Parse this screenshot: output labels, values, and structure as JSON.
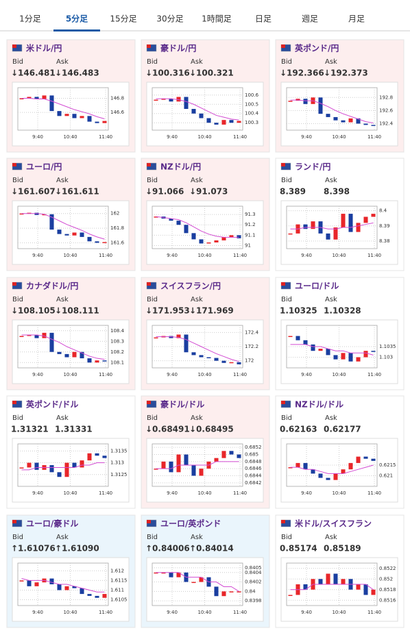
{
  "tabs": [
    "1分足",
    "5分足",
    "15分足",
    "30分足",
    "1時間足",
    "日足",
    "週足",
    "月足"
  ],
  "active_tab": 1,
  "bid_label": "Bid",
  "ask_label": "Ask",
  "chart_xticks": [
    "9:40",
    "10:40",
    "11:40"
  ],
  "cards": [
    {
      "pair": "米ドル/円",
      "trend": "down",
      "bid": "↓146.481",
      "ask": "↓146.483",
      "chart": {
        "type": "candlestick",
        "ylim": [
          146.35,
          146.95
        ],
        "yticks": [
          146.6,
          146.8
        ],
        "values": [
          146.8,
          146.82,
          146.79,
          146.84,
          146.62,
          146.55,
          146.58,
          146.52,
          146.55,
          146.47,
          146.45,
          146.48
        ],
        "ma": [
          146.8,
          146.8,
          146.79,
          146.79,
          146.76,
          146.72,
          146.68,
          146.64,
          146.61,
          146.58,
          146.54,
          146.51
        ]
      }
    },
    {
      "pair": "豪ドル/円",
      "trend": "down",
      "bid": "↓100.316",
      "ask": "↓100.321",
      "chart": {
        "type": "candlestick",
        "ylim": [
          100.22,
          100.68
        ],
        "yticks": [
          100.3,
          100.4,
          100.5,
          100.6
        ],
        "values": [
          100.55,
          100.56,
          100.53,
          100.58,
          100.45,
          100.4,
          100.35,
          100.3,
          100.28,
          100.33,
          100.3,
          100.32
        ],
        "ma": [
          100.56,
          100.56,
          100.56,
          100.55,
          100.53,
          100.5,
          100.46,
          100.42,
          100.38,
          100.36,
          100.34,
          100.33
        ]
      }
    },
    {
      "pair": "英ポンド/円",
      "trend": "down",
      "bid": "↓192.366",
      "ask": "↓192.373",
      "chart": {
        "type": "candlestick",
        "ylim": [
          192.3,
          192.95
        ],
        "yticks": [
          192.4,
          192.6,
          192.8
        ],
        "values": [
          192.75,
          192.78,
          192.7,
          192.8,
          192.55,
          192.5,
          192.45,
          192.42,
          192.48,
          192.4,
          192.38,
          192.37
        ],
        "ma": [
          192.76,
          192.76,
          192.75,
          192.75,
          192.71,
          192.66,
          192.6,
          192.55,
          192.51,
          192.47,
          192.43,
          192.41
        ]
      }
    },
    {
      "pair": "ユーロ/円",
      "trend": "down",
      "bid": "↓161.607",
      "ask": "↓161.611",
      "chart": {
        "type": "candlestick",
        "ylim": [
          161.52,
          162.1
        ],
        "yticks": [
          161.6,
          161.8,
          162
        ],
        "values": [
          162,
          162.01,
          161.98,
          161.99,
          161.78,
          161.72,
          161.7,
          161.74,
          161.68,
          161.62,
          161.6,
          161.61
        ],
        "ma": [
          162,
          162,
          162,
          161.99,
          161.95,
          161.9,
          161.85,
          161.81,
          161.77,
          161.72,
          161.68,
          161.65
        ]
      }
    },
    {
      "pair": "NZドル/円",
      "trend": "down",
      "bid": "↓91.066",
      "ask": "↓91.073",
      "chart": {
        "type": "candlestick",
        "ylim": [
          90.97,
          91.38
        ],
        "yticks": [
          91,
          91.1,
          91.2,
          91.3
        ],
        "values": [
          91.28,
          91.26,
          91.24,
          91.2,
          91.12,
          91.06,
          91.02,
          91.03,
          91.05,
          91.08,
          91.1,
          91.07
        ],
        "ma": [
          91.28,
          91.27,
          91.26,
          91.25,
          91.22,
          91.18,
          91.14,
          91.11,
          91.09,
          91.08,
          91.08,
          91.08
        ]
      }
    },
    {
      "pair": "ランド/円",
      "trend": "flat",
      "bid": "8.389",
      "ask": "8.398",
      "chart": {
        "type": "candlestick",
        "ylim": [
          8.375,
          8.403
        ],
        "yticks": [
          8.38,
          8.39,
          8.4
        ],
        "values": [
          8.385,
          8.391,
          8.388,
          8.393,
          8.385,
          8.381,
          8.389,
          8.398,
          8.386,
          8.392,
          8.396,
          8.398
        ],
        "ma": [
          8.388,
          8.388,
          8.389,
          8.389,
          8.389,
          8.388,
          8.388,
          8.389,
          8.389,
          8.39,
          8.391,
          8.392
        ]
      }
    },
    {
      "pair": "カナダドル/円",
      "trend": "down",
      "bid": "↓108.105",
      "ask": "↓108.111",
      "chart": {
        "type": "candlestick",
        "ylim": [
          108.05,
          108.45
        ],
        "yticks": [
          108.1,
          108.2,
          108.3,
          108.4
        ],
        "values": [
          108.35,
          108.36,
          108.33,
          108.38,
          108.2,
          108.18,
          108.15,
          108.2,
          108.14,
          108.1,
          108.12,
          108.11
        ],
        "ma": [
          108.36,
          108.36,
          108.36,
          108.35,
          108.32,
          108.29,
          108.25,
          108.22,
          108.19,
          108.16,
          108.14,
          108.13
        ]
      }
    },
    {
      "pair": "スイスフラン/円",
      "trend": "down",
      "bid": "↓171.953",
      "ask": "↓171.969",
      "chart": {
        "type": "candlestick",
        "ylim": [
          171.9,
          172.5
        ],
        "yticks": [
          172,
          172.2,
          172.4
        ],
        "values": [
          172.33,
          172.35,
          172.32,
          172.37,
          172.12,
          172.08,
          172.05,
          172.04,
          172,
          171.97,
          171.98,
          171.95
        ],
        "ma": [
          172.34,
          172.34,
          172.34,
          172.33,
          172.3,
          172.25,
          172.2,
          172.15,
          172.1,
          172.06,
          172.02,
          171.99
        ]
      }
    },
    {
      "pair": "ユーロ/ドル",
      "trend": "flat",
      "bid": "1.10325",
      "ask": "1.10328",
      "chart": {
        "type": "candlestick",
        "ylim": [
          1.1025,
          1.1045
        ],
        "yticks": [
          1.103,
          1.1035
        ],
        "values": [
          1.104,
          1.1038,
          1.1036,
          1.1033,
          1.1034,
          1.1031,
          1.1029,
          1.1032,
          1.1028,
          1.103,
          1.1033,
          1.10325
        ],
        "ma": [
          1.1036,
          1.1036,
          1.1036,
          1.1035,
          1.1035,
          1.1034,
          1.1033,
          1.1033,
          1.1032,
          1.1032,
          1.1032,
          1.1031
        ]
      }
    },
    {
      "pair": "英ポンド/ドル",
      "trend": "flat",
      "bid": "1.31321",
      "ask": "1.31331",
      "chart": {
        "type": "candlestick",
        "ylim": [
          1.312,
          1.3138
        ],
        "yticks": [
          1.3125,
          1.313,
          1.3135
        ],
        "values": [
          1.3128,
          1.313,
          1.3127,
          1.3129,
          1.3126,
          1.3124,
          1.313,
          1.3128,
          1.3131,
          1.3134,
          1.3133,
          1.3132
        ],
        "ma": [
          1.3127,
          1.3127,
          1.3128,
          1.3128,
          1.3128,
          1.3128,
          1.3128,
          1.3128,
          1.3129,
          1.3129,
          1.313,
          1.313
        ]
      }
    },
    {
      "pair": "豪ドル/ドル",
      "trend": "down",
      "bid": "↓0.68491",
      "ask": "↓0.68495",
      "chart": {
        "type": "candlestick",
        "ylim": [
          0.6841,
          0.6853
        ],
        "yticks": [
          0.6842,
          0.6844,
          0.6846,
          0.6848,
          0.685,
          0.6852
        ],
        "values": [
          0.6846,
          0.6848,
          0.6845,
          0.685,
          0.6847,
          0.6844,
          0.6846,
          0.6848,
          0.6849,
          0.6851,
          0.685,
          0.6849
        ],
        "ma": [
          0.6846,
          0.6846,
          0.6846,
          0.6847,
          0.6847,
          0.6847,
          0.6847,
          0.6847,
          0.6848,
          0.6848,
          0.6848,
          0.6848
        ]
      }
    },
    {
      "pair": "NZドル/ドル",
      "trend": "flat",
      "bid": "0.62163",
      "ask": "0.62177",
      "chart": {
        "type": "candlestick",
        "ylim": [
          0.6205,
          0.6225
        ],
        "yticks": [
          0.621,
          0.6215
        ],
        "values": [
          0.6214,
          0.6216,
          0.6213,
          0.6211,
          0.6209,
          0.6208,
          0.6211,
          0.6213,
          0.6216,
          0.6219,
          0.6218,
          0.6217
        ],
        "ma": [
          0.6214,
          0.6214,
          0.6213,
          0.6213,
          0.6212,
          0.6211,
          0.6211,
          0.6211,
          0.6212,
          0.6213,
          0.6214,
          0.6215
        ]
      }
    },
    {
      "pair": "ユーロ/豪ドル",
      "trend": "up",
      "bid": "↑1.61076",
      "ask": "↑1.61090",
      "chart": {
        "type": "candlestick",
        "ylim": [
          1.6102,
          1.6124
        ],
        "yticks": [
          1.6105,
          1.611,
          1.6115,
          1.612
        ],
        "values": [
          1.6115,
          1.6112,
          1.6114,
          1.6116,
          1.6113,
          1.611,
          1.6112,
          1.6111,
          1.6108,
          1.6107,
          1.6106,
          1.6108
        ],
        "ma": [
          1.6116,
          1.6115,
          1.6115,
          1.6115,
          1.6114,
          1.6113,
          1.6113,
          1.6112,
          1.6111,
          1.611,
          1.6109,
          1.6109
        ]
      }
    },
    {
      "pair": "ユーロ/英ポンド",
      "trend": "up",
      "bid": "↑0.84006",
      "ask": "↑0.84014",
      "chart": {
        "type": "candlestick",
        "ylim": [
          0.8397,
          0.8406
        ],
        "yticks": [
          0.8398,
          0.84,
          0.8402,
          0.8404,
          0.8405
        ],
        "values": [
          0.8404,
          0.8404,
          0.8403,
          0.8404,
          0.8402,
          0.8402,
          0.8403,
          0.8401,
          0.8399,
          0.84,
          0.84,
          0.84
        ],
        "ma": [
          0.8404,
          0.8404,
          0.8404,
          0.8404,
          0.8403,
          0.8403,
          0.8403,
          0.8402,
          0.8402,
          0.8401,
          0.8401,
          0.84
        ]
      }
    },
    {
      "pair": "米ドル/スイスフラン",
      "trend": "flat",
      "bid": "0.85174",
      "ask": "0.85189",
      "chart": {
        "type": "candlestick",
        "ylim": [
          0.8515,
          0.8523
        ],
        "yticks": [
          0.8516,
          0.8518,
          0.852,
          0.8522
        ],
        "values": [
          0.8517,
          0.8519,
          0.8518,
          0.852,
          0.8519,
          0.8521,
          0.8519,
          0.852,
          0.8518,
          0.8519,
          0.8517,
          0.8518
        ],
        "ma": [
          0.8518,
          0.8518,
          0.8518,
          0.8519,
          0.8519,
          0.8519,
          0.8519,
          0.8519,
          0.8519,
          0.8519,
          0.8519,
          0.8518
        ]
      }
    }
  ]
}
